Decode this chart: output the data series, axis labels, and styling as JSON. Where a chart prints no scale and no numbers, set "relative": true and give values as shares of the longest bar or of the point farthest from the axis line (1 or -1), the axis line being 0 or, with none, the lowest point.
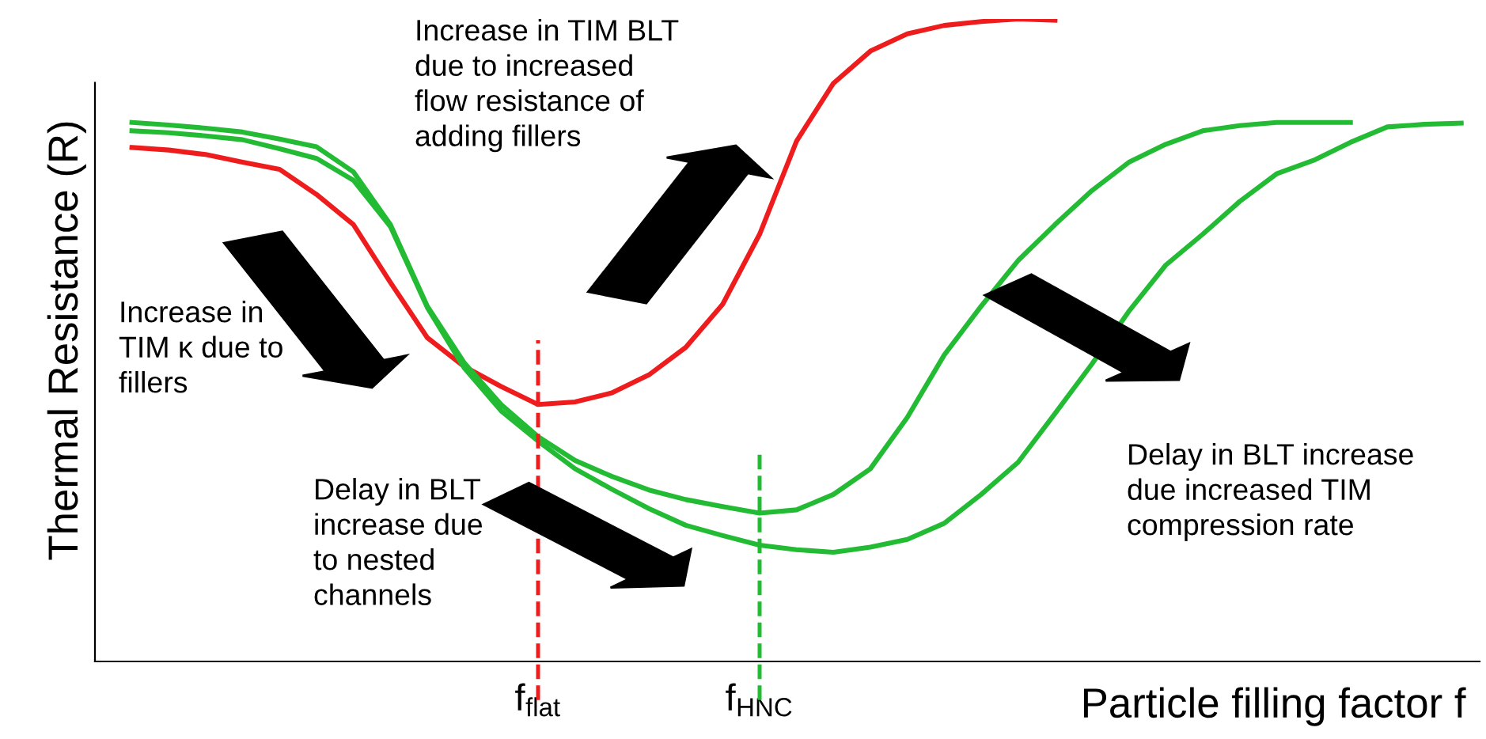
{
  "chart_data": {
    "type": "line",
    "relative": true,
    "ylabel": "Thermal Resistance (R)",
    "xlabel": "Particle filling factor f",
    "tick_labels": "x",
    "grid": false,
    "marker": "none",
    "line_style": "solid",
    "categories": [
      null,
      null,
      null,
      null,
      null,
      null,
      null,
      null,
      null,
      null,
      null,
      null,
      "f$_{flat}$",
      null,
      null,
      null,
      null,
      null,
      "f$_{HNC}$",
      null,
      null,
      null,
      null,
      null,
      null,
      null,
      null,
      null,
      null,
      null,
      null,
      null,
      null,
      null,
      null,
      null,
      null,
      null
    ],
    "series": [
      {
        "color": "#ee1c1c",
        "values": [
          null,
          0.8,
          0.796,
          0.789,
          0.777,
          0.766,
          0.727,
          0.68,
          0.59,
          0.504,
          0.459,
          0.428,
          0.4,
          0.404,
          0.418,
          0.446,
          0.489,
          0.556,
          0.665,
          0.81,
          0.9,
          0.95,
          0.977,
          0.99,
          0.996,
          1.0,
          0.998,
          null,
          null,
          null,
          null,
          null,
          null,
          null,
          null,
          null,
          null,
          null
        ]
      },
      {
        "color": "#22bb33",
        "values": [
          null,
          0.839,
          0.835,
          0.83,
          0.824,
          0.813,
          0.801,
          0.762,
          0.68,
          0.553,
          0.465,
          0.4,
          0.35,
          0.313,
          0.288,
          0.267,
          0.252,
          0.241,
          0.231,
          0.236,
          0.26,
          0.3,
          0.38,
          0.477,
          0.553,
          0.624,
          0.68,
          0.733,
          0.777,
          0.805,
          0.826,
          0.834,
          0.839,
          0.839,
          0.839,
          null,
          null,
          null
        ]
      },
      {
        "color": "#22bb33",
        "values": [
          null,
          0.826,
          0.823,
          0.818,
          0.812,
          0.798,
          0.783,
          0.749,
          0.677,
          0.551,
          0.457,
          0.39,
          0.343,
          0.3,
          0.268,
          0.238,
          0.212,
          0.196,
          0.181,
          0.174,
          0.17,
          0.178,
          0.19,
          0.215,
          0.26,
          0.31,
          0.386,
          0.463,
          0.545,
          0.617,
          0.665,
          0.716,
          0.759,
          0.78,
          0.808,
          0.832,
          0.836,
          0.838
        ]
      }
    ],
    "ref_lines": [
      {
        "axis": "x",
        "value": "f$_{flat}$",
        "color": "#ee1c1c",
        "line_style": "dashed"
      },
      {
        "axis": "x",
        "value": "f$_{HNC}$",
        "color": "#22bb33",
        "line_style": "dashed"
      }
    ],
    "annotations": [
      "Increase in TIM BLT\ndue to increased\nflow resistance of\nadding fillers",
      "Increase in\nTIM κ due to\nfillers",
      "Delay in BLT\nincrease due\nto nested\nchannels",
      "Delay in BLT increase\ndue increased TIM\ncompression rate"
    ]
  }
}
